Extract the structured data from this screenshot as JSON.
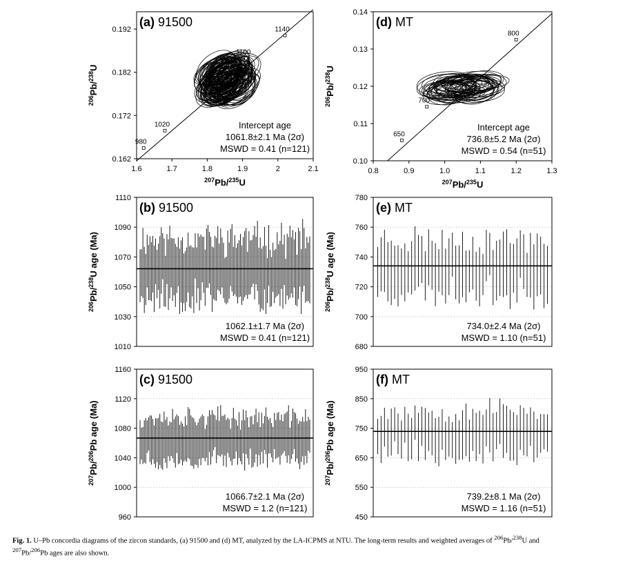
{
  "caption": {
    "label": "Fig. 1.",
    "text1": " U–Pb concordia diagrams of the zircon standards, (a) 91500 and (d) MT, analyzed by the LA-ICPMS at NTU. The long-term results and weighted averages of ",
    "sup1": "206",
    "text2": "Pb/",
    "sup2": "238",
    "text3": "U and",
    "sup3": "207",
    "text4": "Pb/",
    "sup4": "206",
    "text5": "Pb ages are also shown."
  },
  "chart_data": [
    {
      "id": "a",
      "type": "scatter",
      "subtype": "concordia",
      "panel_label": "(a)",
      "sample": "91500",
      "xlabel": {
        "sup": "207",
        "main": "Pb/",
        "sup2": "235",
        "end": "U"
      },
      "ylabel": {
        "sup": "206",
        "main": "Pb/",
        "sup2": "238",
        "end": "U"
      },
      "xlim": [
        1.6,
        2.1
      ],
      "ylim": [
        0.162,
        0.196
      ],
      "xticks": [
        "1.6",
        "1.7",
        "1.8",
        "1.9",
        "2",
        "2.1"
      ],
      "yticks": [
        "0.162",
        "0.172",
        "0.182",
        "0.192"
      ],
      "ytick_values": [
        0.162,
        0.172,
        0.182,
        0.192
      ],
      "concordia_line": {
        "x": [
          1.6,
          2.1
        ],
        "y": [
          0.1615,
          0.1965
        ]
      },
      "age_marks": [
        {
          "label": "980",
          "x": 1.62,
          "y": 0.1645
        },
        {
          "label": "1020",
          "x": 1.68,
          "y": 0.1685
        },
        {
          "label": "1100",
          "x": 1.91,
          "y": 0.1852
        },
        {
          "label": "1140",
          "x": 2.02,
          "y": 0.1905
        }
      ],
      "ellipse_cloud": {
        "center": [
          1.855,
          0.1802
        ],
        "n": 121
      },
      "annotation": {
        "title": "Intercept age",
        "age": "1061.8±2.1 Ma (2σ)",
        "mswd": "MSWD = 0.41 (n=121)"
      }
    },
    {
      "id": "d",
      "type": "scatter",
      "subtype": "concordia",
      "panel_label": "(d)",
      "sample": "MT",
      "xlabel": {
        "sup": "207",
        "main": "Pb/",
        "sup2": "235",
        "end": "U"
      },
      "ylabel": {
        "sup": "206",
        "main": "Pb/",
        "sup2": "238",
        "end": "U"
      },
      "xlim": [
        0.8,
        1.3
      ],
      "ylim": [
        0.1,
        0.14
      ],
      "xticks": [
        "0.8",
        "0.9",
        "1.0",
        "1.1",
        "1.2",
        "1.3"
      ],
      "yticks": [
        "0.10",
        "0.11",
        "0.12",
        "0.13",
        "0.14"
      ],
      "ytick_values": [
        0.1,
        0.11,
        0.12,
        0.13,
        0.14
      ],
      "concordia_line": {
        "x": [
          0.84,
          1.3
        ],
        "y": [
          0.1,
          0.1395
        ]
      },
      "age_marks": [
        {
          "label": "650",
          "x": 0.88,
          "y": 0.1055
        },
        {
          "label": "700",
          "x": 0.95,
          "y": 0.1145
        },
        {
          "label": "800",
          "x": 1.2,
          "y": 0.1325
        }
      ],
      "ellipse_cloud": {
        "center": [
          1.055,
          0.1195
        ],
        "n": 51
      },
      "annotation": {
        "title": "Intercept age",
        "age": "736.8±5.2 Ma (2σ)",
        "mswd": "MSWD = 0.54 (n=51)"
      }
    },
    {
      "id": "b",
      "type": "bar",
      "subtype": "error-bars",
      "panel_label": "(b)",
      "sample": "91500",
      "ylabel": {
        "sup": "206",
        "main": "Pb/",
        "sup2": "238",
        "end": "U age (Ma)"
      },
      "ylim": [
        1010,
        1110
      ],
      "yticks": [
        "1010",
        "1030",
        "1050",
        "1070",
        "1090",
        "1110"
      ],
      "ytick_values": [
        1010,
        1030,
        1050,
        1070,
        1090,
        1110
      ],
      "n": 121,
      "mean": 1062.1,
      "half_width": 20,
      "spread": 9,
      "seed": 11,
      "annotation": {
        "age": "1062.1±1.7 Ma (2σ)",
        "mswd": "MSWD = 0.41 (n=121)"
      }
    },
    {
      "id": "e",
      "type": "bar",
      "subtype": "error-bars",
      "panel_label": "(e)",
      "sample": "MT",
      "ylabel": {
        "sup": "206",
        "main": "Pb/",
        "sup2": "238",
        "end": "U age (Ma)"
      },
      "ylim": [
        680,
        780
      ],
      "yticks": [
        "680",
        "700",
        "720",
        "740",
        "760",
        "780"
      ],
      "ytick_values": [
        680,
        700,
        720,
        740,
        760,
        780
      ],
      "n": 51,
      "mean": 734.0,
      "half_width": 18,
      "spread": 8,
      "seed": 23,
      "annotation": {
        "age": "734.0±2.4 Ma  (2σ)",
        "mswd": "MSWD = 1.10  (n=51)"
      }
    },
    {
      "id": "c",
      "type": "bar",
      "subtype": "error-bars",
      "panel_label": "(c)",
      "sample": "91500",
      "ylabel": {
        "sup": "207",
        "main": "Pb/",
        "sup2": "206",
        "end": "Pb age (Ma)"
      },
      "ylim": [
        960,
        1160
      ],
      "yticks": [
        "960",
        "1000",
        "1040",
        "1080",
        "1120",
        "1160"
      ],
      "ytick_values": [
        960,
        1000,
        1040,
        1080,
        1120,
        1160
      ],
      "n": 121,
      "mean": 1066.7,
      "half_width": 28,
      "spread": 11,
      "seed": 37,
      "annotation": {
        "age": "1066.7±2.1 Ma (2σ)",
        "mswd": "MSWD = 1.2 (n=121)"
      }
    },
    {
      "id": "f",
      "type": "bar",
      "subtype": "error-bars",
      "panel_label": "(f)",
      "sample": "MT",
      "ylabel": {
        "sup": "207",
        "main": "Pb/",
        "sup2": "206",
        "end": "Pb age (Ma)"
      },
      "ylim": [
        450,
        950
      ],
      "yticks": [
        "450",
        "550",
        "650",
        "750",
        "850",
        "950"
      ],
      "ytick_values": [
        450,
        550,
        650,
        750,
        850,
        950
      ],
      "n": 51,
      "mean": 739.2,
      "half_width": 75,
      "spread": 35,
      "seed": 53,
      "annotation": {
        "age": "739.2±8.1 Ma  (2σ)",
        "mswd": "MSWD = 1.16  (n=51)"
      }
    }
  ]
}
